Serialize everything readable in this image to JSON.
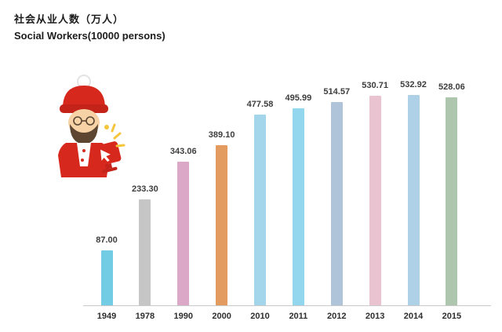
{
  "header": {
    "title_zh": "社会从业人数（万人）",
    "title_en": "Social Workers(10000 persons)"
  },
  "chart_data": {
    "type": "bar",
    "title": "社会从业人数（万人）",
    "subtitle": "Social Workers(10000 persons)",
    "categories": [
      "1949",
      "1978",
      "1990",
      "2000",
      "2010",
      "2011",
      "2012",
      "2013",
      "2014",
      "2015"
    ],
    "values": [
      87.0,
      233.3,
      343.06,
      389.1,
      477.58,
      495.99,
      514.57,
      530.71,
      532.92,
      528.06
    ],
    "value_labels": [
      "87.00",
      "233.30",
      "343.06",
      "389.10",
      "477.58",
      "495.99",
      "514.57",
      "530.71",
      "532.92",
      "528.06"
    ],
    "bar_colors": [
      "#72CDE4",
      "#C6C6C6",
      "#DCA8C8",
      "#E39B5F",
      "#A3D6EA",
      "#93D7EE",
      "#AFC3D9",
      "#E9C3CF",
      "#AFD1E8",
      "#AFC6AE"
    ],
    "xlabel": "",
    "ylabel": "",
    "ylim": [
      0,
      560
    ],
    "grid": false,
    "legend": "none",
    "axis_line_color": "#c9c9c9",
    "label_color": "#3d3d3d"
  },
  "illustration": {
    "name": "bearded worker with red cap using red computer",
    "accent_color": "#D7281D",
    "spark_color": "#F5C63C"
  }
}
